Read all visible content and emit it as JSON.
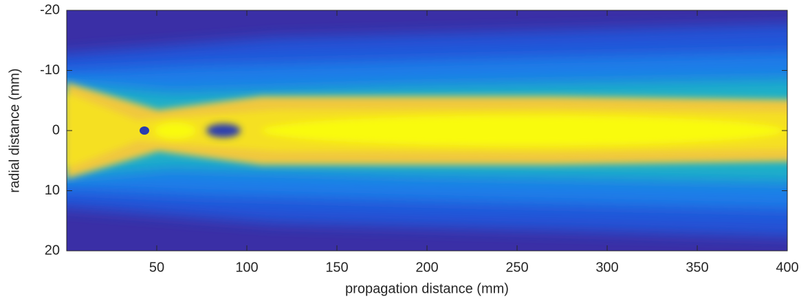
{
  "chart_data": {
    "type": "heatmap",
    "x_label": "propagation distance (mm)",
    "y_label": "radial distance (mm)",
    "xlim": [
      0,
      400
    ],
    "xticks": [
      50,
      100,
      150,
      200,
      250,
      300,
      350,
      400
    ],
    "ylim": [
      20,
      -20
    ],
    "yticks": [
      -20,
      -10,
      0,
      10,
      20
    ]
  }
}
